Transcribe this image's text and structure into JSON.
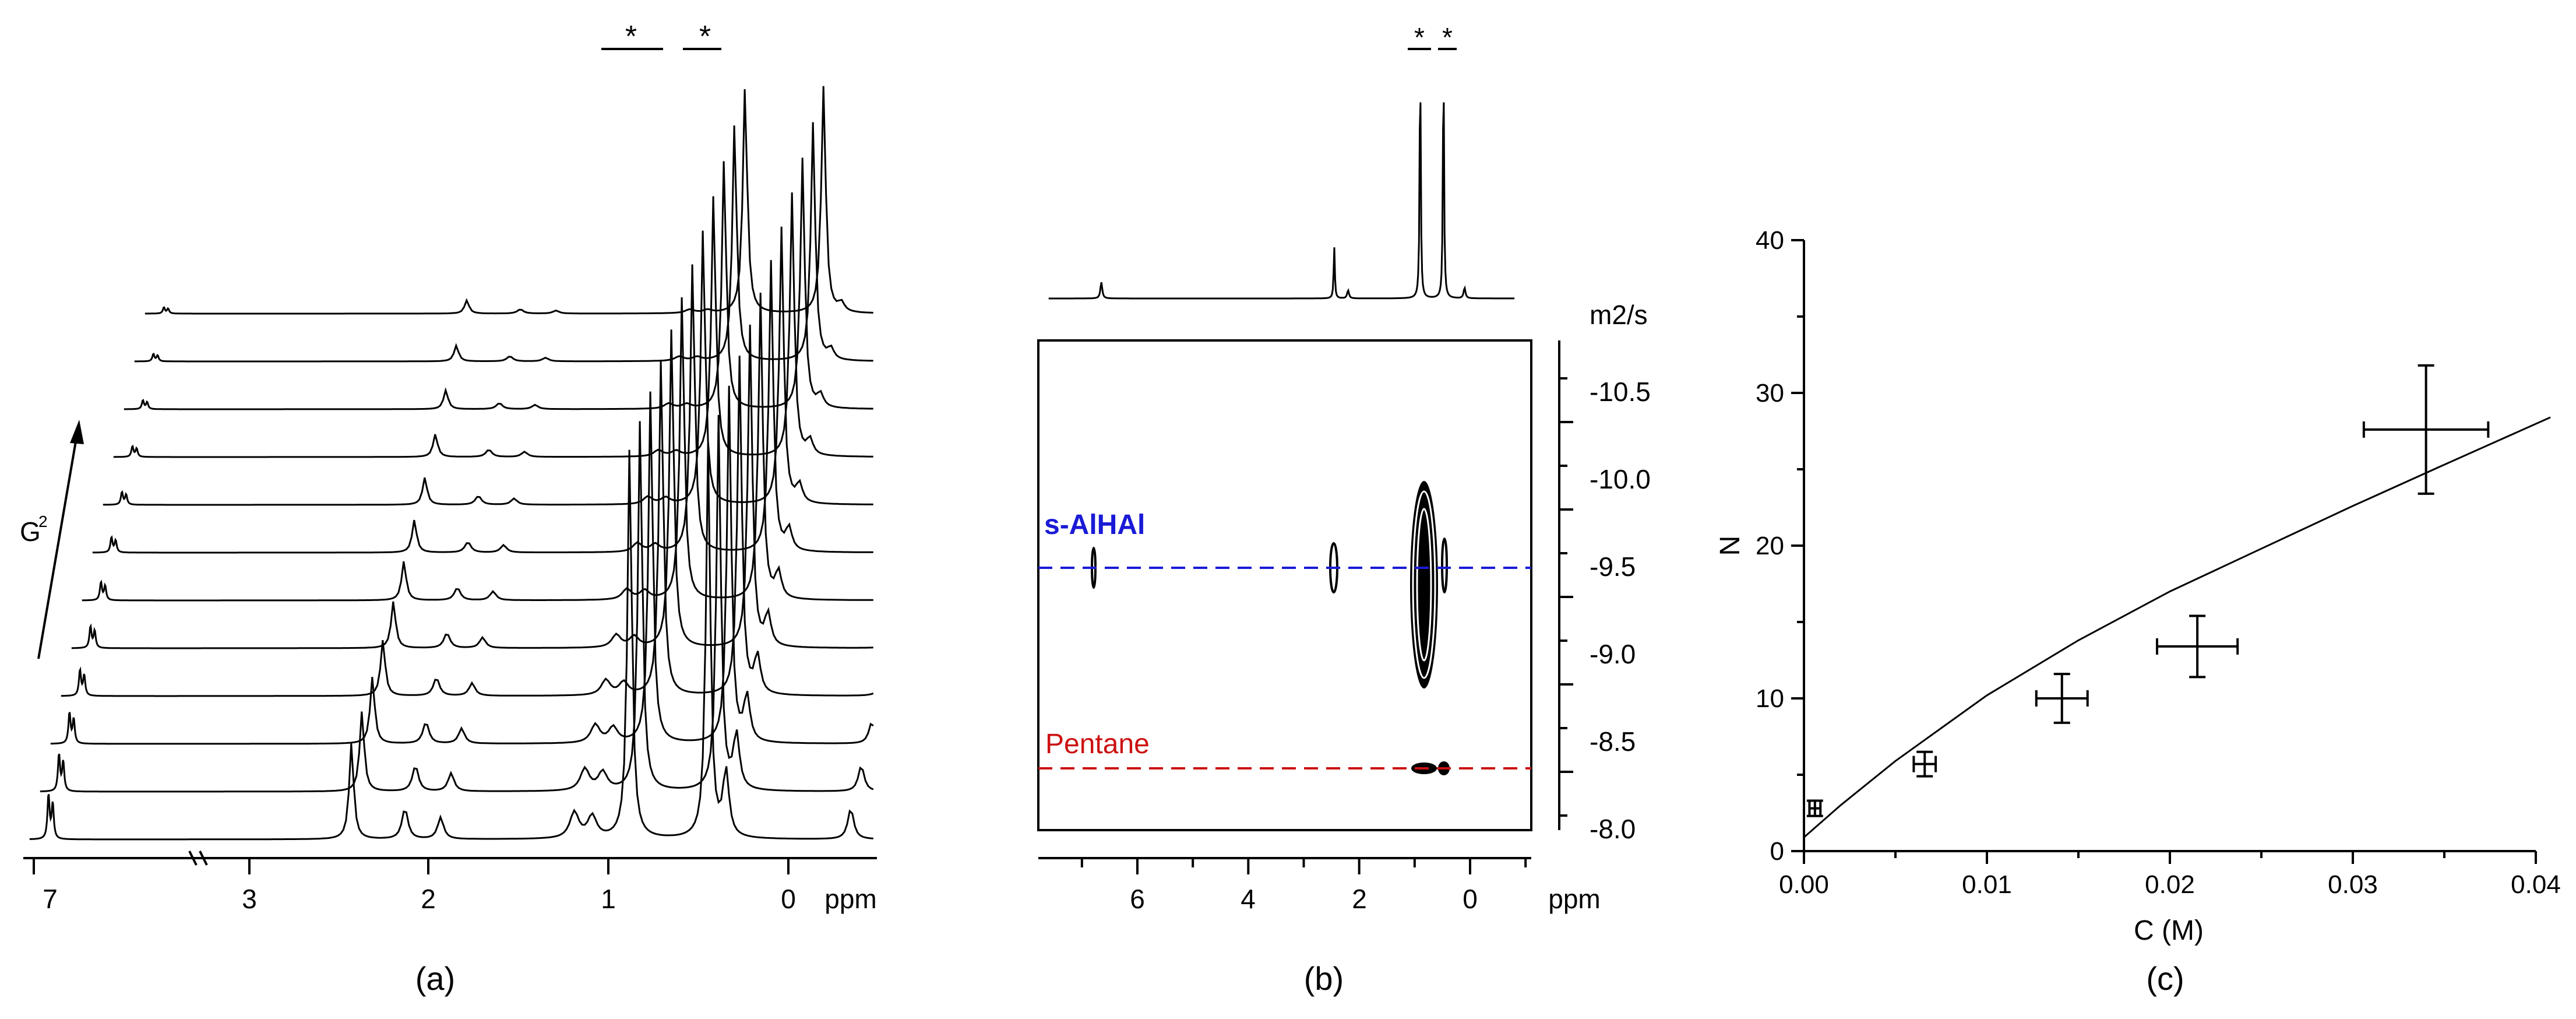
{
  "panels": {
    "a": {
      "label": "(a)",
      "type": "stacked-nmr-spectra",
      "x_axis": {
        "ticks": [
          "7",
          "3",
          "2",
          "1",
          "0"
        ],
        "unit": "ppm"
      },
      "gradient_label": "G",
      "gradient_exp": "2",
      "truncated_marker": "*",
      "num_spectra": 12
    },
    "b": {
      "label": "(b)",
      "type": "dosy-2d",
      "x_axis": {
        "ticks": [
          "6",
          "4",
          "2",
          "0"
        ],
        "unit": "ppm"
      },
      "y_axis": {
        "unit": "m2/s",
        "ticks": [
          "-10.5",
          "-10.0",
          "-9.5",
          "-9.0",
          "-8.5",
          "-8.0"
        ]
      },
      "truncated_marker": "*",
      "series": [
        {
          "name": "s-AlHAl",
          "color": "#1a1ad6",
          "log_D": -9.5
        },
        {
          "name": "Pentane",
          "color": "#cc1111",
          "log_D": -8.35
        }
      ]
    },
    "c": {
      "label": "(c)",
      "type": "scatter-with-errorbars"
    }
  },
  "chart_data": {
    "type": "scatter",
    "title": "",
    "xlabel": "C (M)",
    "ylabel": "N",
    "xlim": [
      0.0,
      0.04
    ],
    "ylim": [
      0,
      40
    ],
    "x_tick_labels": [
      "0.00",
      "0.01",
      "0.02",
      "0.03",
      "0.04"
    ],
    "y_tick_labels": [
      "0",
      "10",
      "20",
      "30",
      "40"
    ],
    "points": [
      {
        "x": 0.0006,
        "y": 2.8,
        "xerr": 0.0003,
        "yerr": 0.5
      },
      {
        "x": 0.0066,
        "y": 5.7,
        "xerr": 0.0006,
        "yerr": 0.8
      },
      {
        "x": 0.0141,
        "y": 10.0,
        "xerr": 0.0014,
        "yerr": 1.6
      },
      {
        "x": 0.0215,
        "y": 13.4,
        "xerr": 0.0022,
        "yerr": 2.0
      },
      {
        "x": 0.034,
        "y": 27.6,
        "xerr": 0.0034,
        "yerr": 4.2
      }
    ],
    "fit_line": {
      "x": [
        0.0,
        0.002,
        0.005,
        0.01,
        0.015,
        0.02,
        0.025,
        0.03,
        0.035,
        0.0408
      ],
      "y": [
        0.9,
        3.0,
        5.9,
        10.2,
        13.8,
        17.0,
        19.8,
        22.6,
        25.3,
        28.4
      ]
    }
  }
}
